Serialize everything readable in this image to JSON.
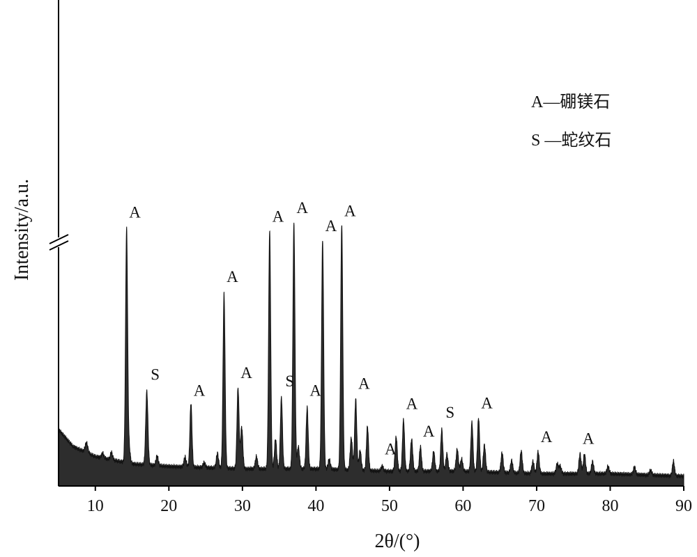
{
  "chart_data": {
    "type": "area",
    "title": "",
    "xlabel": "2θ/(°)",
    "ylabel": "Intensity/a.u.",
    "xlim": [
      5,
      90
    ],
    "ylim": [
      0,
      100
    ],
    "grid": false,
    "y_axis_break": true,
    "fill_color": "#2d2d2d",
    "x_ticks": [
      "10",
      "20",
      "30",
      "40",
      "50",
      "60",
      "70",
      "80",
      "90"
    ],
    "legend": {
      "placement": "top-right",
      "entries": [
        {
          "key": "A",
          "label": "A—硼镁石"
        },
        {
          "key": "S",
          "label": "S —蛇纹石"
        }
      ]
    },
    "baseline": [
      [
        5,
        23
      ],
      [
        7,
        16
      ],
      [
        10,
        12
      ],
      [
        15,
        9
      ],
      [
        20,
        8
      ],
      [
        30,
        7
      ],
      [
        40,
        7
      ],
      [
        50,
        6
      ],
      [
        60,
        6
      ],
      [
        70,
        5
      ],
      [
        80,
        5
      ],
      [
        90,
        4
      ]
    ],
    "peaks": [
      {
        "x": 8.8,
        "y": 4,
        "w": 0.18
      },
      {
        "x": 11.0,
        "y": 2,
        "w": 0.15
      },
      {
        "x": 12.2,
        "y": 3,
        "w": 0.15
      },
      {
        "x": 14.25,
        "y": 95,
        "w": 0.14,
        "label": "A"
      },
      {
        "x": 14.6,
        "y": 6,
        "w": 0.15
      },
      {
        "x": 17.0,
        "y": 30,
        "w": 0.15,
        "label": "S"
      },
      {
        "x": 18.4,
        "y": 4,
        "w": 0.15
      },
      {
        "x": 22.2,
        "y": 4,
        "w": 0.15
      },
      {
        "x": 23.0,
        "y": 26,
        "w": 0.14,
        "label": "A"
      },
      {
        "x": 24.8,
        "y": 2,
        "w": 0.15
      },
      {
        "x": 26.6,
        "y": 6,
        "w": 0.15
      },
      {
        "x": 27.5,
        "y": 71,
        "w": 0.14,
        "label": "A"
      },
      {
        "x": 29.4,
        "y": 33,
        "w": 0.14,
        "label": "A"
      },
      {
        "x": 29.9,
        "y": 17,
        "w": 0.15
      },
      {
        "x": 31.9,
        "y": 5,
        "w": 0.15
      },
      {
        "x": 33.7,
        "y": 97,
        "w": 0.14,
        "label": "A"
      },
      {
        "x": 34.5,
        "y": 12,
        "w": 0.15
      },
      {
        "x": 35.3,
        "y": 29,
        "w": 0.14,
        "label": "S"
      },
      {
        "x": 37.0,
        "y": 100,
        "w": 0.14,
        "label": "A"
      },
      {
        "x": 37.6,
        "y": 9,
        "w": 0.15
      },
      {
        "x": 38.8,
        "y": 25,
        "w": 0.14,
        "label": "A"
      },
      {
        "x": 40.9,
        "y": 93,
        "w": 0.14,
        "label": "A"
      },
      {
        "x": 41.8,
        "y": 4,
        "w": 0.15
      },
      {
        "x": 43.5,
        "y": 100,
        "w": 0.14,
        "label": "A"
      },
      {
        "x": 44.8,
        "y": 13,
        "w": 0.15
      },
      {
        "x": 45.4,
        "y": 29,
        "w": 0.14,
        "label": "A"
      },
      {
        "x": 46.0,
        "y": 8,
        "w": 0.15
      },
      {
        "x": 47.0,
        "y": 18,
        "w": 0.14
      },
      {
        "x": 49.0,
        "y": 2,
        "w": 0.15,
        "label": "A"
      },
      {
        "x": 50.9,
        "y": 14,
        "w": 0.15
      },
      {
        "x": 51.9,
        "y": 21,
        "w": 0.14,
        "label": "A"
      },
      {
        "x": 53.0,
        "y": 13,
        "w": 0.15
      },
      {
        "x": 54.2,
        "y": 10,
        "w": 0.14,
        "label": "A"
      },
      {
        "x": 56.0,
        "y": 8,
        "w": 0.15
      },
      {
        "x": 57.1,
        "y": 17,
        "w": 0.14,
        "label": "S"
      },
      {
        "x": 57.8,
        "y": 7,
        "w": 0.15
      },
      {
        "x": 59.2,
        "y": 9,
        "w": 0.15
      },
      {
        "x": 59.8,
        "y": 5,
        "w": 0.15
      },
      {
        "x": 61.2,
        "y": 20,
        "w": 0.14
      },
      {
        "x": 62.1,
        "y": 22,
        "w": 0.14,
        "label": "A"
      },
      {
        "x": 62.9,
        "y": 11,
        "w": 0.15
      },
      {
        "x": 65.3,
        "y": 8,
        "w": 0.15
      },
      {
        "x": 66.6,
        "y": 5,
        "w": 0.15
      },
      {
        "x": 67.9,
        "y": 9,
        "w": 0.15
      },
      {
        "x": 69.5,
        "y": 5,
        "w": 0.15
      },
      {
        "x": 70.2,
        "y": 9,
        "w": 0.15,
        "label": "A"
      },
      {
        "x": 72.8,
        "y": 4,
        "w": 0.15
      },
      {
        "x": 73.2,
        "y": 3,
        "w": 0.15
      },
      {
        "x": 75.9,
        "y": 8,
        "w": 0.15,
        "label": "A"
      },
      {
        "x": 76.5,
        "y": 8,
        "w": 0.15
      },
      {
        "x": 77.6,
        "y": 5,
        "w": 0.15
      },
      {
        "x": 79.7,
        "y": 3,
        "w": 0.15
      },
      {
        "x": 83.3,
        "y": 3,
        "w": 0.15
      },
      {
        "x": 85.5,
        "y": 2,
        "w": 0.15
      },
      {
        "x": 88.6,
        "y": 6,
        "w": 0.14
      }
    ]
  }
}
